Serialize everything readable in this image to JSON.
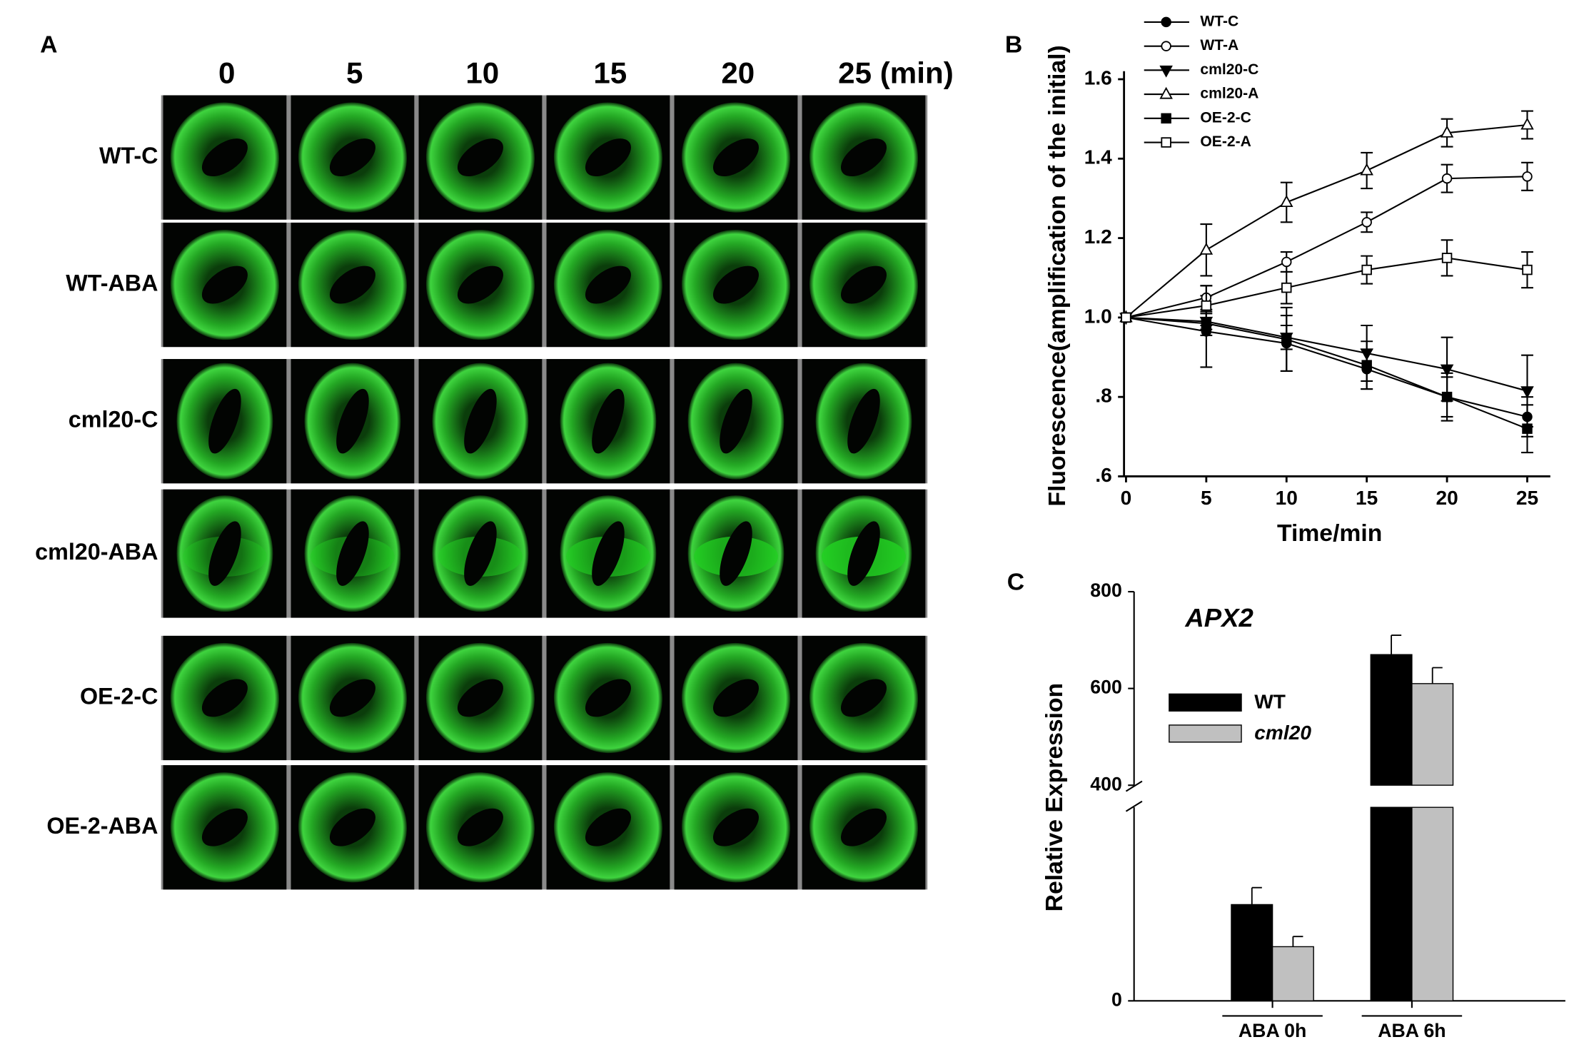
{
  "panel_labels": [
    "A",
    "B",
    "C"
  ],
  "panel_a": {
    "times": [
      "0",
      "5",
      "10",
      "15",
      "20",
      "25 (min)"
    ],
    "rows": [
      "WT-C",
      "WT-ABA",
      "cml20-C",
      "cml20-ABA",
      "OE-2-C",
      "OE-2-ABA"
    ]
  },
  "chart_data": [
    {
      "type": "line",
      "xlabel": "Time/min",
      "ylabel": "Fluorescence(amplification of the initial)",
      "x": [
        0,
        5,
        10,
        15,
        20,
        25
      ],
      "xlim": [
        0,
        26.5
      ],
      "xticks": [
        0,
        5,
        10,
        15,
        20,
        25
      ],
      "ylim": [
        0.6,
        1.6
      ],
      "yticks": [
        {
          "value": 0.6,
          "label": ".6"
        },
        {
          "value": 0.8,
          "label": ".8"
        },
        {
          "value": 1.0,
          "label": "1.0"
        },
        {
          "value": 1.2,
          "label": "1.2"
        },
        {
          "value": 1.4,
          "label": "1.4"
        },
        {
          "value": 1.6,
          "label": "1.6"
        }
      ],
      "legend": "upper left",
      "series": [
        {
          "name": "WT-C",
          "color": "#000000",
          "marker": "circle",
          "filled": true,
          "values": [
            1.0,
            0.965,
            0.935,
            0.87,
            0.8,
            0.75
          ],
          "errors": [
            0,
            0.09,
            0.07,
            0.05,
            0.05,
            0.05
          ]
        },
        {
          "name": "WT-A",
          "color": "#000000",
          "marker": "circle",
          "filled": false,
          "values": [
            1.0,
            1.05,
            1.14,
            1.24,
            1.35,
            1.355
          ],
          "errors": [
            0,
            0.03,
            0.025,
            0.025,
            0.035,
            0.035
          ]
        },
        {
          "name": "cml20-C",
          "color": "#000000",
          "marker": "triangle-down",
          "filled": true,
          "values": [
            1.0,
            0.99,
            0.95,
            0.91,
            0.87,
            0.815
          ],
          "errors": [
            0,
            0.02,
            0.03,
            0.07,
            0.08,
            0.09
          ]
        },
        {
          "name": "cml20-A",
          "color": "#000000",
          "marker": "triangle-up",
          "filled": false,
          "values": [
            1.0,
            1.17,
            1.29,
            1.37,
            1.465,
            1.485
          ],
          "errors": [
            0,
            0.065,
            0.05,
            0.045,
            0.035,
            0.035
          ]
        },
        {
          "name": "OE-2-C",
          "color": "#000000",
          "marker": "square",
          "filled": true,
          "values": [
            1.0,
            0.985,
            0.945,
            0.88,
            0.8,
            0.72
          ],
          "errors": [
            0,
            0.03,
            0.08,
            0.06,
            0.06,
            0.06
          ]
        },
        {
          "name": "OE-2-A",
          "color": "#000000",
          "marker": "square",
          "filled": false,
          "values": [
            1.0,
            1.03,
            1.075,
            1.12,
            1.15,
            1.12
          ],
          "errors": [
            0,
            0.05,
            0.04,
            0.035,
            0.045,
            0.045
          ]
        }
      ]
    },
    {
      "type": "bar",
      "title": "APX2",
      "ylabel": "Relative Expression",
      "categories": [
        "ABA 0h",
        "ABA 6h"
      ],
      "ylim": [
        0,
        800
      ],
      "y_break": 400,
      "yticks": [
        0,
        400,
        600,
        800
      ],
      "series": [
        {
          "name": "WT",
          "color": "#000000",
          "values": [
            199,
            670
          ],
          "errors": [
            35,
            40
          ]
        },
        {
          "name": "cml20",
          "color": "#c0c0c0",
          "values": [
            112,
            610
          ],
          "errors": [
            21,
            33
          ]
        }
      ]
    }
  ]
}
